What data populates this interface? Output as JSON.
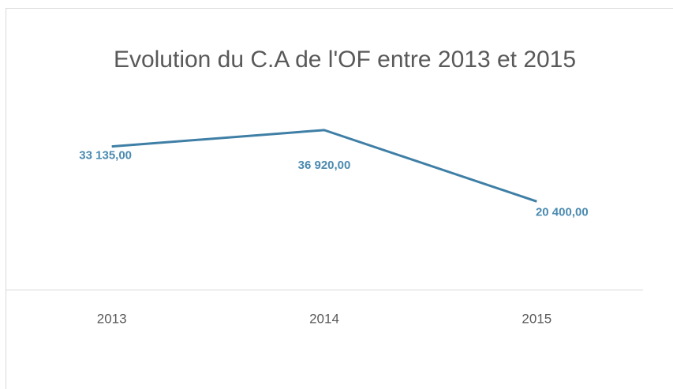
{
  "chart_data": {
    "type": "line",
    "title": "Evolution du C.A de l'OF entre 2013 et 2015",
    "categories": [
      "2013",
      "2014",
      "2015"
    ],
    "series": [
      {
        "name": "C.A",
        "color": "#3f7fa6",
        "values": [
          33135,
          36920,
          20400
        ],
        "value_labels": [
          "33 135,00",
          "36 920,00",
          "20 400,00"
        ]
      }
    ],
    "ylim": [
      0,
      40000
    ]
  }
}
